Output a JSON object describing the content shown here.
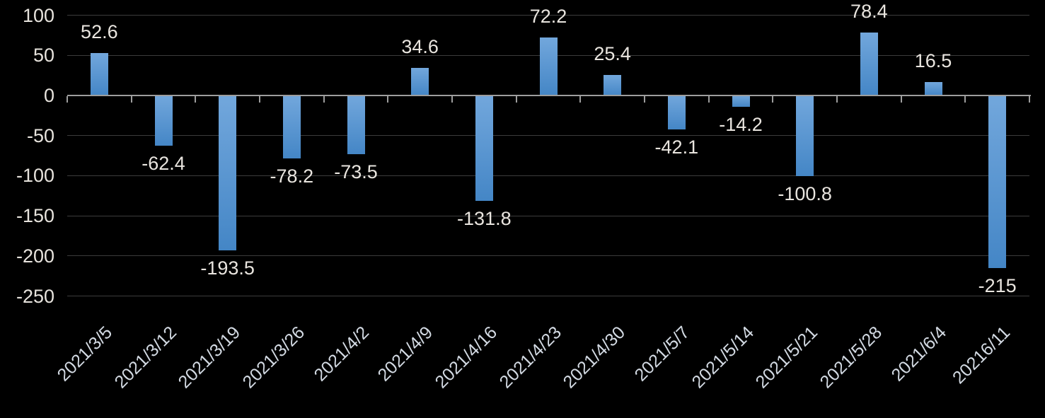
{
  "chart_data": {
    "type": "bar",
    "title": "",
    "categories": [
      "2021/3/5",
      "2021/3/12",
      "2021/3/19",
      "2021/3/26",
      "2021/4/2",
      "2021/4/9",
      "2021/4/16",
      "2021/4/23",
      "2021/4/30",
      "2021/5/7",
      "2021/5/14",
      "2021/5/21",
      "2021/5/28",
      "2021/6/4",
      "20216/11"
    ],
    "values": [
      52.6,
      -62.4,
      -193.5,
      -78.2,
      -73.5,
      34.6,
      -131.8,
      72.2,
      25.4,
      -42.1,
      -14.2,
      -100.8,
      78.4,
      16.5,
      -215
    ],
    "value_labels": [
      "52.6",
      "-62.4",
      "-193.5",
      "-78.2",
      "-73.5",
      "34.6",
      "-131.8",
      "72.2",
      "25.4",
      "-42.1",
      "-14.2",
      "-100.8",
      "78.4",
      "16.5",
      "-215"
    ],
    "xlabel": "",
    "ylabel": "",
    "y_axis": {
      "ticks": [
        100,
        50,
        0,
        -50,
        -100,
        -150,
        -200,
        -250
      ],
      "tick_labels": [
        "100",
        "50",
        "0",
        "-50",
        "-100",
        "-150",
        "-200",
        "-250"
      ],
      "min": -250,
      "max": 100
    },
    "grid": true,
    "legend": null,
    "x_label_rotation_deg": -45,
    "colors": {
      "background": "#000000",
      "bar_gradient_top": "#72a7dc",
      "bar_gradient_bottom": "#4486c6",
      "gridline": "#3c3c3c",
      "zero_axis": "#9d9d9d",
      "y_label_color": "#e7e3dd",
      "value_label_color": "#e9e5df",
      "x_label_color": "#d3dae3"
    }
  }
}
